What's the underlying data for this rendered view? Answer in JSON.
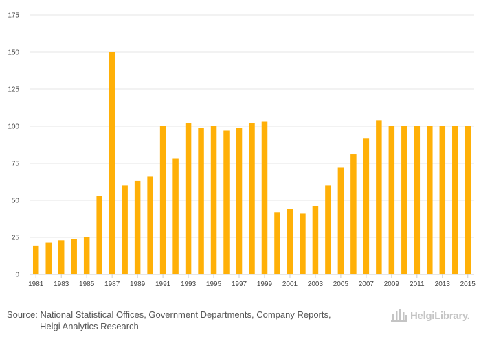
{
  "chart_data": {
    "type": "bar",
    "title": "",
    "xlabel": "",
    "ylabel": "",
    "ylim": [
      0,
      175
    ],
    "yticks": [
      0,
      25,
      50,
      75,
      100,
      125,
      150,
      175
    ],
    "grid": true,
    "bar_color": "#FFB007",
    "grid_color": "#E6E6E6",
    "axis_color": "#CCCCCC",
    "categories": [
      "1981",
      "1982",
      "1983",
      "1984",
      "1985",
      "1986",
      "1987",
      "1988",
      "1989",
      "1990",
      "1991",
      "1992",
      "1993",
      "1994",
      "1995",
      "1996",
      "1997",
      "1998",
      "1999",
      "2000",
      "2001",
      "2002",
      "2003",
      "2004",
      "2005",
      "2006",
      "2007",
      "2008",
      "2009",
      "2010",
      "2011",
      "2012",
      "2013",
      "2014",
      "2015"
    ],
    "xtick_labels": [
      "1981",
      "1983",
      "1985",
      "1987",
      "1989",
      "1991",
      "1993",
      "1995",
      "1997",
      "1999",
      "2001",
      "2003",
      "2005",
      "2007",
      "2009",
      "2011",
      "2013",
      "2015"
    ],
    "values": [
      19.5,
      21.5,
      23,
      24,
      25,
      53,
      150,
      60,
      63,
      66,
      100,
      78,
      102,
      99,
      100,
      97,
      99,
      102,
      103,
      42,
      44,
      41,
      46,
      60,
      72,
      81,
      92,
      104,
      100,
      100,
      100,
      100,
      100,
      100,
      100
    ]
  },
  "footer": {
    "source_label": "Source:",
    "source_line1": "National Statistical Offices, Government Departments, Company Reports,",
    "source_line2": "Helgi Analytics Research",
    "brand": "HelgiLibrary."
  }
}
